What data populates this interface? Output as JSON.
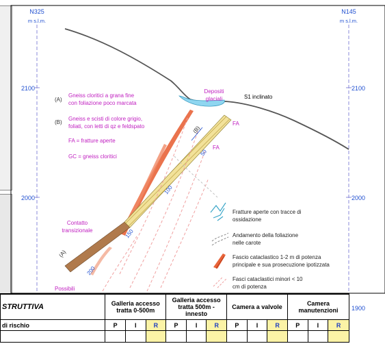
{
  "diagram": {
    "left_header": {
      "code": "N325",
      "unit": "m s.l.m."
    },
    "right_header": {
      "code": "N145",
      "unit": "m s.l.m."
    },
    "left_ticks": [
      "2100",
      "2000"
    ],
    "right_ticks": [
      "2100",
      "2000",
      "1900"
    ],
    "legend_text": [
      {
        "label": "(A)",
        "line1": "Gneiss cloritici a grana fine",
        "line2": "con foliazione poco marcata"
      },
      {
        "label": "(B)",
        "line1": "Gneiss e scisti di colore grigio,",
        "line2": "foliati, con letti di qz e feldspato"
      },
      {
        "label": "",
        "line1": "FA = fratture aperte",
        "line2": ""
      },
      {
        "label": "",
        "line1": "GC = gneiss cloritici",
        "line2": ""
      }
    ],
    "depositi": [
      "Depositi",
      "glaciali"
    ],
    "s1_label": "S1 inclinato",
    "fa_labels": [
      "FA",
      "FA"
    ],
    "b_label": "(B)",
    "a_label": "(A)",
    "contatto": [
      "Contatto",
      "transizionale"
    ],
    "possibili": "Possibili",
    "depth_marks": [
      "50",
      "100",
      "150",
      "200"
    ],
    "legend_symbols": [
      {
        "line1": "Fratture aperte con tracce di",
        "line2": "ossidazione",
        "icon": "fracture-icon"
      },
      {
        "line1": "Andamento della foliazione",
        "line2": "nelle carote",
        "icon": "foliation-icon"
      },
      {
        "line1": "Fascio cataclastico 1-2 m di potenza",
        "line2": "principale e sua prosecuzione ipotizzata",
        "icon": "cataclastic-main-icon"
      },
      {
        "line1": "Fasci cataclastici minori < 10",
        "line2": "cm di potenza",
        "icon": "cataclastic-minor-icon"
      }
    ]
  },
  "table": {
    "title": "STRUTTIVA",
    "columns": [
      "Galleria accesso tratta 0-500m",
      "Galleria accesso tratta 500m - innesto",
      "Camera a valvole",
      "Camera manutenzioni"
    ],
    "row2_label": "di rischio",
    "sub_headers": [
      "P",
      "I",
      "R"
    ]
  }
}
